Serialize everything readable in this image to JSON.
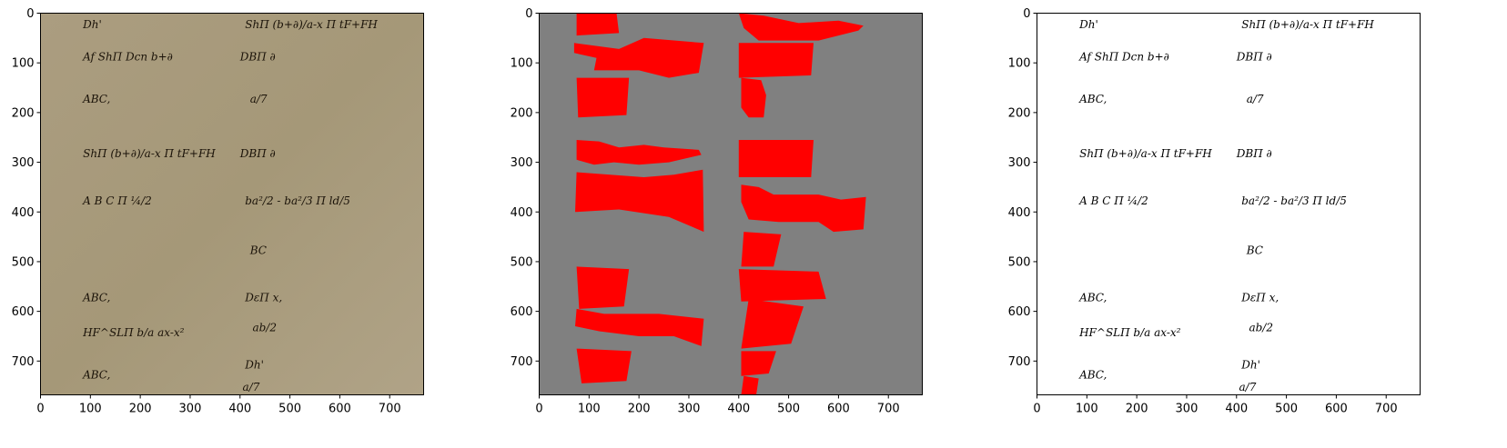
{
  "panels": [
    {
      "id": "original",
      "content": "photo",
      "background": "#a89a7c"
    },
    {
      "id": "mask",
      "content": "mask",
      "background": "#808080",
      "mask_color": "#ff0000"
    },
    {
      "id": "binarized",
      "content": "binary",
      "background": "#ffffff"
    }
  ],
  "axes": {
    "x_ticks": [
      "0",
      "100",
      "200",
      "300",
      "400",
      "500",
      "600",
      "700"
    ],
    "y_ticks": [
      "0",
      "100",
      "200",
      "300",
      "400",
      "500",
      "600",
      "700"
    ],
    "xlim": [
      0,
      768
    ],
    "ylim": [
      0,
      768
    ],
    "y_inverted": true
  },
  "handwriting": [
    {
      "text": "Dh'",
      "x": 85,
      "y": 30
    },
    {
      "text": "ShΠ (b+∂)/a-x Π tF+FH",
      "x": 410,
      "y": 30
    },
    {
      "text": "Af ShΠ Dcn b+∂",
      "x": 85,
      "y": 95
    },
    {
      "text": "DBΠ ∂",
      "x": 400,
      "y": 95
    },
    {
      "text": "ABC,",
      "x": 85,
      "y": 180
    },
    {
      "text": "a/7",
      "x": 420,
      "y": 180
    },
    {
      "text": "ShΠ (b+∂)/a-x Π tF+FH",
      "x": 85,
      "y": 290
    },
    {
      "text": "DBΠ ∂",
      "x": 400,
      "y": 290
    },
    {
      "text": "A B C Π ¼/2",
      "x": 85,
      "y": 385
    },
    {
      "text": "ba²/2 - ba²/3 Π  ld/5",
      "x": 410,
      "y": 385
    },
    {
      "text": "BC",
      "x": 420,
      "y": 485
    },
    {
      "text": "ABC,",
      "x": 85,
      "y": 580
    },
    {
      "text": "DεΠ x,",
      "x": 410,
      "y": 580
    },
    {
      "text": "HF^SLΠ b/a ax-x²",
      "x": 85,
      "y": 650
    },
    {
      "text": "ab/2",
      "x": 425,
      "y": 640
    },
    {
      "text": "ABC,",
      "x": 85,
      "y": 735
    },
    {
      "text": "Dh'",
      "x": 410,
      "y": 715
    },
    {
      "text": "a/7",
      "x": 405,
      "y": 760
    }
  ],
  "mask_polygons": [
    [
      [
        75,
        0
      ],
      [
        155,
        0
      ],
      [
        160,
        40
      ],
      [
        75,
        45
      ]
    ],
    [
      [
        70,
        60
      ],
      [
        160,
        72
      ],
      [
        210,
        50
      ],
      [
        330,
        60
      ],
      [
        320,
        120
      ],
      [
        260,
        130
      ],
      [
        200,
        115
      ],
      [
        110,
        115
      ],
      [
        115,
        90
      ],
      [
        70,
        80
      ]
    ],
    [
      [
        75,
        130
      ],
      [
        180,
        130
      ],
      [
        175,
        205
      ],
      [
        78,
        210
      ]
    ],
    [
      [
        400,
        0
      ],
      [
        450,
        5
      ],
      [
        520,
        20
      ],
      [
        600,
        15
      ],
      [
        650,
        25
      ],
      [
        640,
        35
      ],
      [
        560,
        55
      ],
      [
        440,
        55
      ],
      [
        410,
        30
      ]
    ],
    [
      [
        400,
        60
      ],
      [
        550,
        60
      ],
      [
        545,
        125
      ],
      [
        400,
        130
      ]
    ],
    [
      [
        405,
        130
      ],
      [
        445,
        135
      ],
      [
        455,
        165
      ],
      [
        450,
        210
      ],
      [
        420,
        210
      ],
      [
        405,
        190
      ]
    ],
    [
      [
        75,
        255
      ],
      [
        120,
        258
      ],
      [
        160,
        270
      ],
      [
        210,
        265
      ],
      [
        250,
        270
      ],
      [
        320,
        275
      ],
      [
        325,
        285
      ],
      [
        260,
        300
      ],
      [
        200,
        305
      ],
      [
        150,
        300
      ],
      [
        110,
        305
      ],
      [
        75,
        295
      ]
    ],
    [
      [
        75,
        320
      ],
      [
        210,
        330
      ],
      [
        270,
        325
      ],
      [
        328,
        315
      ],
      [
        330,
        440
      ],
      [
        260,
        410
      ],
      [
        160,
        395
      ],
      [
        72,
        400
      ]
    ],
    [
      [
        400,
        255
      ],
      [
        550,
        255
      ],
      [
        545,
        330
      ],
      [
        400,
        330
      ]
    ],
    [
      [
        405,
        345
      ],
      [
        440,
        350
      ],
      [
        470,
        365
      ],
      [
        560,
        365
      ],
      [
        605,
        375
      ],
      [
        655,
        370
      ],
      [
        650,
        435
      ],
      [
        590,
        440
      ],
      [
        560,
        420
      ],
      [
        480,
        420
      ],
      [
        420,
        415
      ],
      [
        405,
        380
      ]
    ],
    [
      [
        410,
        440
      ],
      [
        485,
        445
      ],
      [
        470,
        510
      ],
      [
        405,
        510
      ]
    ],
    [
      [
        400,
        515
      ],
      [
        560,
        520
      ],
      [
        575,
        575
      ],
      [
        405,
        580
      ]
    ],
    [
      [
        75,
        510
      ],
      [
        180,
        515
      ],
      [
        170,
        590
      ],
      [
        80,
        595
      ]
    ],
    [
      [
        75,
        595
      ],
      [
        130,
        605
      ],
      [
        240,
        605
      ],
      [
        330,
        615
      ],
      [
        325,
        670
      ],
      [
        270,
        650
      ],
      [
        200,
        650
      ],
      [
        120,
        640
      ],
      [
        72,
        630
      ]
    ],
    [
      [
        75,
        675
      ],
      [
        185,
        680
      ],
      [
        175,
        740
      ],
      [
        85,
        745
      ]
    ],
    [
      [
        420,
        575
      ],
      [
        530,
        590
      ],
      [
        505,
        665
      ],
      [
        405,
        675
      ]
    ],
    [
      [
        405,
        680
      ],
      [
        475,
        680
      ],
      [
        460,
        725
      ],
      [
        405,
        730
      ]
    ],
    [
      [
        410,
        730
      ],
      [
        440,
        735
      ],
      [
        435,
        768
      ],
      [
        405,
        768
      ]
    ]
  ]
}
